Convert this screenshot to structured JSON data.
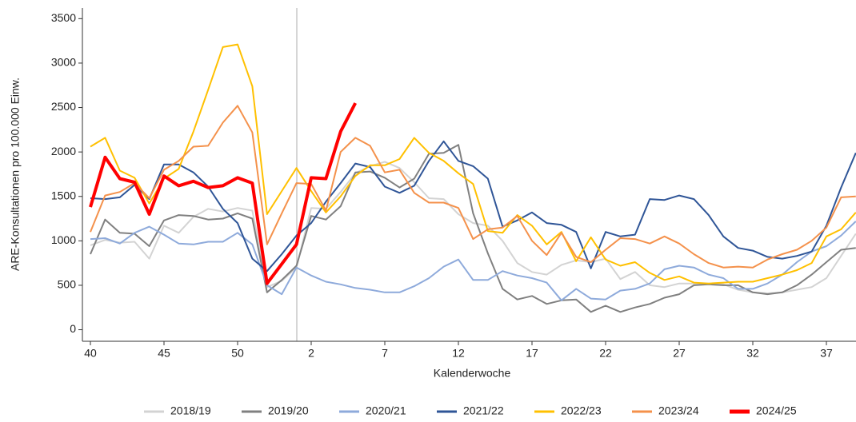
{
  "chart_data": {
    "type": "line",
    "x_label": "Kalenderwoche",
    "y_label": "ARE-Konsultationen pro 100.000 Einw.",
    "categories": [
      "40",
      null,
      null,
      null,
      null,
      "45",
      null,
      null,
      null,
      null,
      "50",
      null,
      null,
      null,
      null,
      "2",
      null,
      null,
      null,
      null,
      "7",
      null,
      null,
      null,
      null,
      "12",
      null,
      null,
      null,
      null,
      "17",
      null,
      null,
      null,
      null,
      "22",
      null,
      null,
      null,
      null,
      "27",
      null,
      null,
      null,
      null,
      "32",
      null,
      null,
      null,
      null,
      "37",
      null,
      null
    ],
    "ylim": [
      -130,
      3620
    ],
    "yticks": [
      0,
      500,
      1000,
      1500,
      2000,
      2500,
      3000,
      3500
    ],
    "legend": "bottom",
    "series": [
      {
        "name": "2018/19",
        "color": "#d3d3d3",
        "values": [
          950,
          1010,
          980,
          990,
          800,
          1170,
          1090,
          1270,
          1360,
          1330,
          1370,
          1340,
          480,
          550,
          700,
          1370,
          1360,
          1550,
          1760,
          1840,
          1890,
          1820,
          1660,
          1480,
          1470,
          1300,
          1200,
          1170,
          1000,
          750,
          650,
          620,
          730,
          780,
          760,
          800,
          570,
          650,
          500,
          480,
          520,
          520,
          520,
          510,
          450,
          420,
          410,
          420,
          450,
          480,
          580,
          830,
          1080
        ]
      },
      {
        "name": "2019/20",
        "color": "#808080",
        "values": [
          850,
          1240,
          1090,
          1080,
          940,
          1230,
          1290,
          1280,
          1240,
          1250,
          1310,
          1250,
          420,
          560,
          720,
          1280,
          1240,
          1390,
          1770,
          1780,
          1710,
          1600,
          1700,
          1980,
          1990,
          2080,
          1310,
          860,
          460,
          340,
          380,
          290,
          330,
          340,
          200,
          270,
          200,
          250,
          290,
          360,
          400,
          500,
          510,
          500,
          500,
          420,
          400,
          420,
          500,
          620,
          760,
          900,
          920
        ]
      },
      {
        "name": "2020/21",
        "color": "#8eaadb",
        "values": [
          1020,
          1030,
          970,
          1090,
          1160,
          1070,
          970,
          960,
          990,
          990,
          1090,
          960,
          500,
          400,
          700,
          610,
          540,
          510,
          470,
          450,
          420,
          420,
          490,
          580,
          710,
          790,
          560,
          560,
          660,
          610,
          580,
          530,
          330,
          460,
          350,
          340,
          440,
          460,
          520,
          680,
          720,
          700,
          620,
          580,
          460,
          460,
          520,
          620,
          760,
          880,
          940,
          1060,
          1220
        ]
      },
      {
        "name": "2021/22",
        "color": "#2f5597",
        "values": [
          1480,
          1470,
          1490,
          1630,
          1470,
          1860,
          1860,
          1770,
          1610,
          1360,
          1200,
          800,
          660,
          850,
          1060,
          1200,
          1440,
          1650,
          1870,
          1830,
          1610,
          1540,
          1620,
          1900,
          2120,
          1900,
          1840,
          1700,
          1160,
          1230,
          1320,
          1200,
          1180,
          1100,
          690,
          1100,
          1050,
          1070,
          1470,
          1460,
          1510,
          1470,
          1290,
          1050,
          920,
          890,
          820,
          800,
          830,
          880,
          1170,
          1600,
          1990
        ]
      },
      {
        "name": "2022/23",
        "color": "#ffc000",
        "values": [
          2060,
          2160,
          1790,
          1710,
          1420,
          1700,
          1810,
          2230,
          2700,
          3180,
          3210,
          2740,
          1300,
          1560,
          1820,
          1560,
          1320,
          1500,
          1730,
          1850,
          1850,
          1920,
          2160,
          1990,
          1900,
          1760,
          1640,
          1110,
          1090,
          1290,
          1170,
          960,
          1100,
          770,
          1040,
          790,
          720,
          760,
          640,
          560,
          600,
          530,
          520,
          530,
          540,
          540,
          580,
          620,
          670,
          750,
          1050,
          1130,
          1320
        ]
      },
      {
        "name": "2023/24",
        "color": "#f4914b",
        "values": [
          1100,
          1510,
          1550,
          1650,
          1480,
          1800,
          1900,
          2060,
          2070,
          2330,
          2520,
          2220,
          960,
          1310,
          1650,
          1640,
          1340,
          2000,
          2160,
          2070,
          1770,
          1800,
          1540,
          1430,
          1430,
          1370,
          1020,
          1130,
          1150,
          1280,
          1000,
          840,
          1090,
          820,
          760,
          900,
          1030,
          1020,
          970,
          1050,
          970,
          850,
          750,
          700,
          710,
          700,
          790,
          850,
          900,
          1000,
          1150,
          1490,
          1500
        ]
      },
      {
        "name": "2024/25",
        "color": "#ff0000",
        "values": [
          1380,
          1940,
          1700,
          1660,
          1300,
          1730,
          1620,
          1670,
          1600,
          1620,
          1710,
          1650,
          520,
          740,
          960,
          1710,
          1700,
          2230,
          2550,
          null,
          null,
          null,
          null,
          null,
          null,
          null,
          null,
          null,
          null,
          null,
          null,
          null,
          null,
          null,
          null,
          null,
          null,
          null,
          null,
          null,
          null,
          null,
          null,
          null,
          null,
          null,
          null,
          null,
          null,
          null,
          null,
          null,
          null
        ]
      }
    ]
  }
}
